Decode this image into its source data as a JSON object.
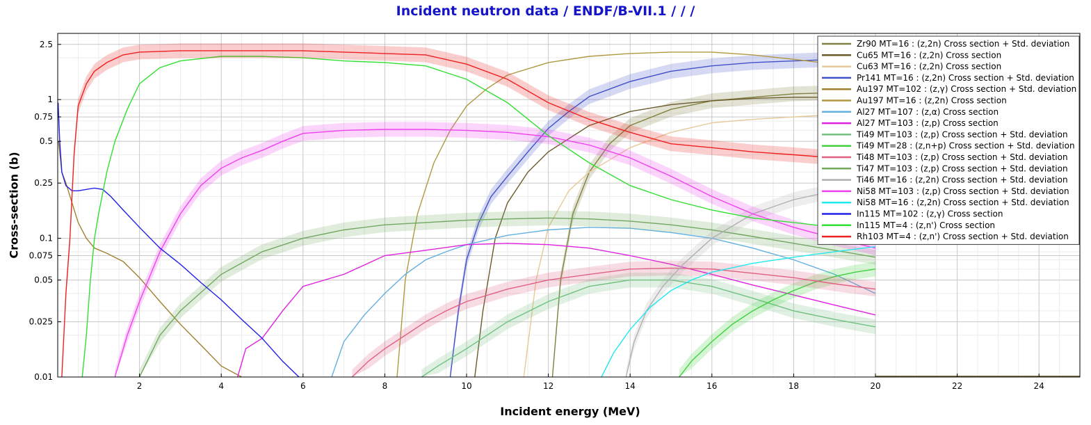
{
  "chart_data": {
    "type": "line",
    "title": "Incident neutron data / ENDF/B-VII.1 / / /",
    "xlabel": "Incident energy (MeV)",
    "ylabel": "Cross-section (b)",
    "xlim": [
      0,
      25
    ],
    "ylim": [
      0.01,
      3
    ],
    "yscale": "log",
    "grid": true,
    "legend_position": "top-right",
    "x_ticks": [
      "2",
      "4",
      "6",
      "8",
      "10",
      "12",
      "14",
      "16",
      "18",
      "20",
      "22",
      "24"
    ],
    "y_ticks": [
      "0.01",
      "0.025",
      "0.05",
      "0.075",
      "0.1",
      "0.25",
      "0.5",
      "0.75",
      "1",
      "2.5"
    ],
    "series": [
      {
        "name": "Zr90 MT=16 : (z,2n) Cross section + Std. deviation",
        "color": "#808040",
        "band": true,
        "x": [
          12.1,
          12.3,
          12.6,
          13,
          13.5,
          14,
          15,
          16,
          17,
          18,
          19,
          20
        ],
        "y": [
          0.01,
          0.05,
          0.15,
          0.3,
          0.48,
          0.65,
          0.85,
          0.98,
          1.04,
          1.1,
          1.12,
          1.12
        ]
      },
      {
        "name": "Cu65 MT=16 : (z,2n) Cross section",
        "color": "#6b5a2a",
        "band": false,
        "x": [
          10.2,
          10.4,
          10.7,
          11,
          11.5,
          12,
          13,
          14,
          15,
          16,
          17,
          18,
          19,
          20
        ],
        "y": [
          0.01,
          0.03,
          0.1,
          0.18,
          0.3,
          0.42,
          0.65,
          0.82,
          0.92,
          0.98,
          1.02,
          1.04,
          1.04,
          1.04
        ]
      },
      {
        "name": "Cu63 MT=16 : (z,2n) Cross section",
        "color": "#e8c898",
        "band": false,
        "x": [
          11.4,
          11.7,
          12,
          12.5,
          13,
          14,
          15,
          16,
          17,
          18,
          19,
          20
        ],
        "y": [
          0.01,
          0.05,
          0.12,
          0.22,
          0.3,
          0.45,
          0.58,
          0.68,
          0.72,
          0.75,
          0.78,
          0.8
        ]
      },
      {
        "name": "Pr141 MT=16 : (z,2n) Cross section + Std. deviation",
        "color": "#4050c8",
        "band": true,
        "x": [
          9.6,
          9.8,
          10,
          10.3,
          10.6,
          11,
          11.5,
          12,
          12.5,
          13,
          14,
          15,
          16,
          17,
          18,
          19,
          20
        ],
        "y": [
          0.01,
          0.03,
          0.07,
          0.13,
          0.2,
          0.28,
          0.42,
          0.62,
          0.82,
          1.05,
          1.35,
          1.6,
          1.75,
          1.85,
          1.9,
          1.95,
          1.95
        ]
      },
      {
        "name": "Au197 MT=102 : (z,γ) Cross section + Std. deviation",
        "color": "#a08030",
        "band": false,
        "x": [
          0.02,
          0.1,
          0.2,
          0.35,
          0.5,
          0.7,
          0.9,
          1.2,
          1.6,
          2.0,
          2.5,
          3.0,
          3.5,
          4.0,
          4.5
        ],
        "y": [
          0.5,
          0.3,
          0.25,
          0.18,
          0.13,
          0.1,
          0.085,
          0.078,
          0.068,
          0.052,
          0.035,
          0.024,
          0.017,
          0.012,
          0.01
        ]
      },
      {
        "name": "Au197 MT=16 : (z,2n) Cross section",
        "color": "#b09840",
        "band": false,
        "x": [
          8.3,
          8.5,
          8.8,
          9.2,
          9.6,
          10,
          10.5,
          11,
          12,
          13,
          14,
          15,
          16,
          17,
          18,
          19,
          20
        ],
        "y": [
          0.01,
          0.05,
          0.15,
          0.35,
          0.6,
          0.9,
          1.2,
          1.5,
          1.85,
          2.05,
          2.15,
          2.2,
          2.2,
          2.1,
          1.95,
          1.8,
          1.7
        ]
      },
      {
        "name": "Al27 MT=107 : (z,α) Cross section",
        "color": "#60b0e0",
        "band": false,
        "x": [
          6.7,
          7,
          7.5,
          8,
          8.5,
          9,
          9.5,
          10,
          11,
          12,
          13,
          14,
          15,
          16,
          17,
          18,
          19,
          20
        ],
        "y": [
          0.01,
          0.018,
          0.028,
          0.04,
          0.055,
          0.07,
          0.08,
          0.09,
          0.105,
          0.115,
          0.12,
          0.118,
          0.11,
          0.1,
          0.085,
          0.07,
          0.055,
          0.04
        ]
      },
      {
        "name": "Al27 MT=103 : (z,p) Cross section",
        "color": "#e020e0",
        "band": false,
        "x": [
          4.4,
          4.6,
          5,
          5.5,
          6,
          7,
          8,
          9,
          10,
          11,
          12,
          13,
          14,
          15,
          16,
          17,
          18,
          19,
          20
        ],
        "y": [
          0.01,
          0.016,
          0.019,
          0.03,
          0.045,
          0.055,
          0.075,
          0.082,
          0.09,
          0.092,
          0.09,
          0.085,
          0.075,
          0.065,
          0.055,
          0.046,
          0.039,
          0.033,
          0.028
        ]
      },
      {
        "name": "Ti49 MT=103 : (z,p) Cross section + Std. deviation",
        "color": "#70c080",
        "band": true,
        "x": [
          8.9,
          9.3,
          10,
          11,
          12,
          13,
          14,
          15,
          16,
          17,
          18,
          19,
          20
        ],
        "y": [
          0.01,
          0.012,
          0.016,
          0.025,
          0.035,
          0.045,
          0.05,
          0.05,
          0.045,
          0.037,
          0.03,
          0.026,
          0.023
        ]
      },
      {
        "name": "Ti49 MT=28 : (z,n+p) Cross section + Std. deviation",
        "color": "#40d040",
        "band": true,
        "x": [
          15.2,
          15.5,
          16,
          16.5,
          17,
          17.5,
          18,
          18.5,
          19,
          19.5,
          20
        ],
        "y": [
          0.01,
          0.013,
          0.018,
          0.024,
          0.03,
          0.036,
          0.042,
          0.048,
          0.053,
          0.057,
          0.06
        ]
      },
      {
        "name": "Ti48 MT=103 : (z,p) Cross section + Std. deviation",
        "color": "#e06080",
        "band": true,
        "x": [
          7.2,
          7.6,
          8,
          8.5,
          9,
          9.5,
          10,
          11,
          12,
          13,
          14,
          15,
          16,
          17,
          18,
          19,
          20
        ],
        "y": [
          0.01,
          0.013,
          0.016,
          0.02,
          0.025,
          0.03,
          0.035,
          0.043,
          0.05,
          0.055,
          0.06,
          0.061,
          0.06,
          0.056,
          0.052,
          0.047,
          0.043
        ]
      },
      {
        "name": "Ti47 MT=103 : (z,p) Cross section + Std. deviation",
        "color": "#70a860",
        "band": true,
        "x": [
          2.0,
          2.5,
          3,
          4,
          5,
          6,
          7,
          8,
          9,
          10,
          11,
          12,
          13,
          14,
          15,
          16,
          17,
          18,
          19,
          20
        ],
        "y": [
          0.01,
          0.02,
          0.03,
          0.055,
          0.08,
          0.1,
          0.115,
          0.125,
          0.13,
          0.135,
          0.138,
          0.14,
          0.138,
          0.133,
          0.125,
          0.115,
          0.103,
          0.092,
          0.082,
          0.073
        ]
      },
      {
        "name": "Ti46 MT=16 : (z,2n) Cross section + Std. deviation",
        "color": "#b0b0b0",
        "band": true,
        "x": [
          13.9,
          14.1,
          14.4,
          14.8,
          15.3,
          16,
          17,
          18,
          19,
          20
        ],
        "y": [
          0.01,
          0.018,
          0.03,
          0.045,
          0.065,
          0.1,
          0.15,
          0.19,
          0.22,
          0.24
        ]
      },
      {
        "name": "Ni58 MT=103 : (z,p) Cross section + Std. deviation",
        "color": "#f040f0",
        "band": true,
        "x": [
          1.4,
          1.7,
          2.0,
          2.5,
          3,
          3.5,
          4,
          4.5,
          5,
          5.5,
          6,
          7,
          8,
          9,
          10,
          11,
          12,
          13,
          14,
          15,
          16,
          17,
          18,
          19,
          20
        ],
        "y": [
          0.01,
          0.02,
          0.035,
          0.08,
          0.15,
          0.24,
          0.32,
          0.38,
          0.43,
          0.5,
          0.57,
          0.6,
          0.61,
          0.61,
          0.6,
          0.58,
          0.54,
          0.47,
          0.38,
          0.28,
          0.2,
          0.15,
          0.12,
          0.1,
          0.085
        ]
      },
      {
        "name": "Ni58 MT=16 : (z,2n) Cross section + Std. deviation",
        "color": "#20e8f0",
        "band": false,
        "x": [
          13.3,
          13.6,
          14,
          14.5,
          15,
          15.5,
          16,
          17,
          18,
          19,
          20
        ],
        "y": [
          0.01,
          0.015,
          0.022,
          0.032,
          0.042,
          0.05,
          0.057,
          0.066,
          0.073,
          0.08,
          0.087
        ]
      },
      {
        "name": "In115 MT=102 : (z,γ) Cross section",
        "color": "#2020e8",
        "band": false,
        "x": [
          0.01,
          0.05,
          0.1,
          0.2,
          0.35,
          0.5,
          0.7,
          0.9,
          1.1,
          1.3,
          1.6,
          2.0,
          2.5,
          3.0,
          3.5,
          4.0,
          4.5,
          5.0,
          5.5,
          5.9
        ],
        "y": [
          0.95,
          0.5,
          0.3,
          0.24,
          0.22,
          0.22,
          0.225,
          0.23,
          0.225,
          0.2,
          0.16,
          0.12,
          0.085,
          0.065,
          0.048,
          0.036,
          0.026,
          0.019,
          0.013,
          0.01
        ]
      },
      {
        "name": "In115 MT=4 : (z,n') Cross section",
        "color": "#30e030",
        "band": false,
        "x": [
          0.6,
          0.7,
          0.8,
          0.9,
          1.0,
          1.2,
          1.4,
          1.7,
          2.0,
          2.5,
          3,
          4,
          5,
          6,
          7,
          8,
          9,
          10,
          11,
          12,
          13,
          14,
          15,
          16,
          17,
          18,
          19,
          20
        ],
        "y": [
          0.01,
          0.02,
          0.05,
          0.1,
          0.15,
          0.3,
          0.5,
          0.85,
          1.3,
          1.7,
          1.9,
          2.05,
          2.05,
          2.0,
          1.9,
          1.85,
          1.75,
          1.4,
          0.95,
          0.55,
          0.35,
          0.24,
          0.19,
          0.16,
          0.14,
          0.13,
          0.12,
          0.11
        ]
      },
      {
        "name": "Rh103 MT=4 : (z,n') Cross section + Std. deviation",
        "color": "#ee2020",
        "band": true,
        "x": [
          0.1,
          0.2,
          0.3,
          0.4,
          0.5,
          0.7,
          0.9,
          1.2,
          1.6,
          2.0,
          3,
          4,
          5,
          6,
          7,
          8,
          9,
          10,
          11,
          12,
          13,
          14,
          15,
          16,
          17,
          18,
          19,
          20
        ],
        "y": [
          0.01,
          0.04,
          0.1,
          0.4,
          0.9,
          1.3,
          1.6,
          1.85,
          2.1,
          2.2,
          2.25,
          2.25,
          2.25,
          2.25,
          2.2,
          2.15,
          2.1,
          1.8,
          1.4,
          0.95,
          0.72,
          0.58,
          0.48,
          0.45,
          0.42,
          0.4,
          0.38,
          0.36
        ]
      }
    ]
  }
}
